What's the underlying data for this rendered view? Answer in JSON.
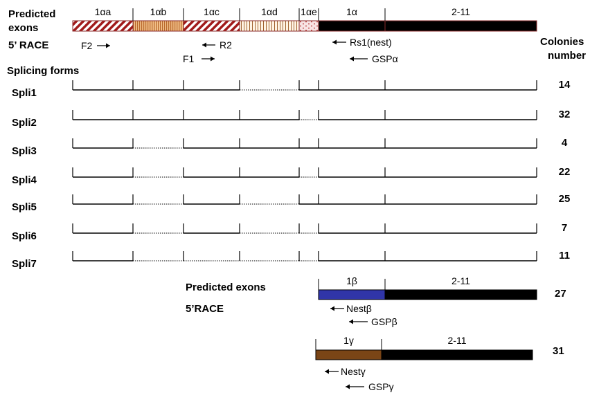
{
  "header": {
    "predicted_exons_line1": "Predicted",
    "predicted_exons_line2": "exons",
    "race_label": "5’ RACE",
    "colonies_line1": "Colonies",
    "colonies_line2": "number",
    "splicing_forms_label": "Splicing forms"
  },
  "alpha_exons": [
    {
      "label": "1αa",
      "fill": "stripe-red"
    },
    {
      "label": "1αb",
      "fill": "vertical-orange"
    },
    {
      "label": "1αc",
      "fill": "stripe-red"
    },
    {
      "label": "1αd",
      "fill": "vertical-brown"
    },
    {
      "label": "1αe",
      "fill": "dots-red"
    },
    {
      "label": "1α",
      "fill": "#000000"
    },
    {
      "label": "2-11",
      "fill": "#000000"
    }
  ],
  "alpha_primers": [
    {
      "label": "F2",
      "direction": "right"
    },
    {
      "label": "R2",
      "direction": "left"
    },
    {
      "label": "F1",
      "direction": "right"
    },
    {
      "label": "Rs1(nest)",
      "direction": "left"
    },
    {
      "label": "GSPα",
      "direction": "left"
    }
  ],
  "splicing_forms": [
    {
      "name": "Spli1",
      "colonies": "14",
      "dotted_segments": [
        3
      ]
    },
    {
      "name": "Spli2",
      "colonies": "32",
      "dotted_segments": [
        4
      ]
    },
    {
      "name": "Spli3",
      "colonies": "4",
      "dotted_segments": [
        1
      ]
    },
    {
      "name": "Spli4",
      "colonies": "22",
      "dotted_segments": [
        1,
        4
      ]
    },
    {
      "name": "Spli5",
      "colonies": "25",
      "dotted_segments": [
        1,
        3
      ]
    },
    {
      "name": "Spli6",
      "colonies": "7",
      "dotted_segments": [
        1,
        3,
        4
      ]
    },
    {
      "name": "Spli7",
      "colonies": "11",
      "dotted_segments": [
        1,
        2,
        3,
        4
      ]
    }
  ],
  "beta": {
    "predicted_exons_label": "Predicted exons",
    "race_label": "5’RACE",
    "exons": [
      {
        "label": "1β",
        "fill": "#3035a8"
      },
      {
        "label": "2-11",
        "fill": "#000000"
      }
    ],
    "primers": [
      {
        "label": "Nestβ",
        "direction": "left"
      },
      {
        "label": "GSPβ",
        "direction": "left"
      }
    ],
    "colonies": "27"
  },
  "gamma": {
    "exons": [
      {
        "label": "1γ",
        "fill": "#7a4516"
      },
      {
        "label": "2-11",
        "fill": "#000000"
      }
    ],
    "primers": [
      {
        "label": "Nestγ",
        "direction": "left"
      },
      {
        "label": "GSPγ",
        "direction": "left"
      }
    ],
    "colonies": "31"
  }
}
